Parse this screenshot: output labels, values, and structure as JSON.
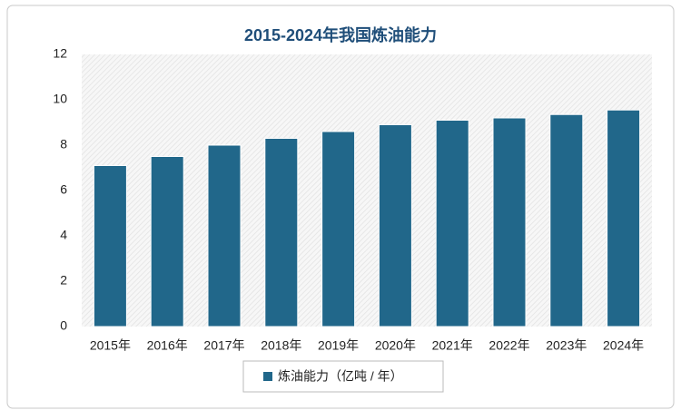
{
  "chart_data": {
    "type": "bar",
    "title": "2015-2024年我国炼油能力",
    "categories": [
      "2015年",
      "2016年",
      "2017年",
      "2018年",
      "2019年",
      "2020年",
      "2021年",
      "2022年",
      "2023年",
      "2024年"
    ],
    "series": [
      {
        "name": "炼油能力（亿吨 / 年）",
        "color": "#21678a",
        "values": [
          7.1,
          7.5,
          8.0,
          8.3,
          8.6,
          8.9,
          9.1,
          9.2,
          9.35,
          9.55
        ]
      }
    ],
    "ylim": [
      0,
      12
    ],
    "yticks": [
      0,
      2,
      4,
      6,
      8,
      10,
      12
    ],
    "legend": "bottom"
  }
}
